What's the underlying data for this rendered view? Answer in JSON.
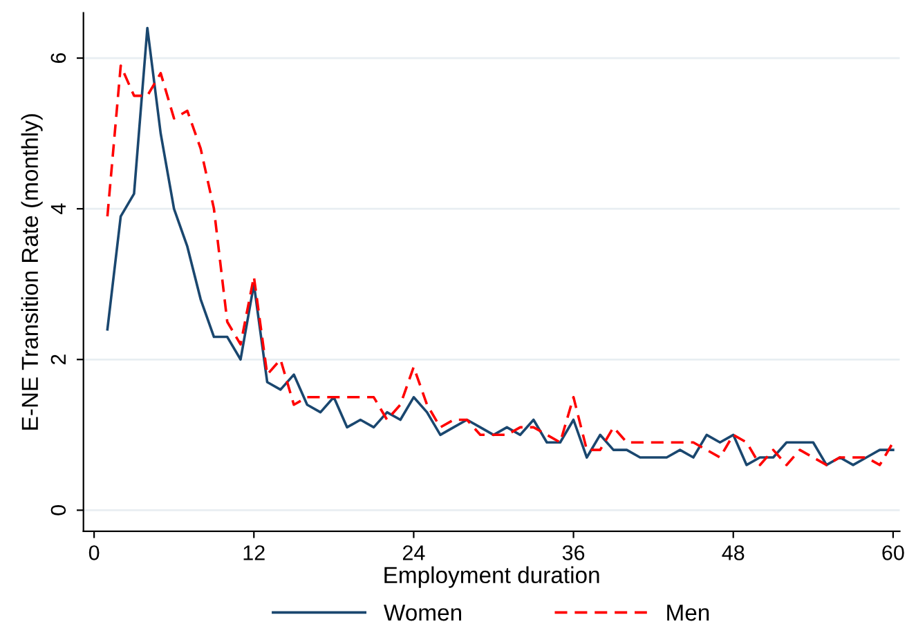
{
  "chart_data": {
    "type": "line",
    "xlabel": "Employment duration",
    "ylabel": "E-NE Transition Rate (monthly)",
    "x": [
      1,
      2,
      3,
      4,
      5,
      6,
      7,
      8,
      9,
      10,
      11,
      12,
      13,
      14,
      15,
      16,
      17,
      18,
      19,
      20,
      21,
      22,
      23,
      24,
      25,
      26,
      27,
      28,
      29,
      30,
      31,
      32,
      33,
      34,
      35,
      36,
      37,
      38,
      39,
      40,
      41,
      42,
      43,
      44,
      45,
      46,
      47,
      48,
      49,
      50,
      51,
      52,
      53,
      54,
      55,
      56,
      57,
      58,
      59,
      60
    ],
    "series": [
      {
        "name": "Women",
        "color": "#1a476f",
        "line_style": "solid",
        "values": [
          2.4,
          3.9,
          4.2,
          6.4,
          5.0,
          4.0,
          3.5,
          2.8,
          2.3,
          2.3,
          2.0,
          3.0,
          1.7,
          1.6,
          1.8,
          1.4,
          1.3,
          1.5,
          1.1,
          1.2,
          1.1,
          1.3,
          1.2,
          1.5,
          1.3,
          1.0,
          1.1,
          1.2,
          1.1,
          1.0,
          1.1,
          1.0,
          1.2,
          0.9,
          0.9,
          1.2,
          0.7,
          1.0,
          0.8,
          0.8,
          0.7,
          0.7,
          0.7,
          0.8,
          0.7,
          1.0,
          0.9,
          1.0,
          0.6,
          0.7,
          0.7,
          0.9,
          0.9,
          0.9,
          0.6,
          0.7,
          0.6,
          0.7,
          0.8,
          0.8
        ]
      },
      {
        "name": "Men",
        "color": "#ff0000",
        "line_style": "dashed",
        "values": [
          3.9,
          5.9,
          5.5,
          5.5,
          5.8,
          5.2,
          5.3,
          4.8,
          4.0,
          2.5,
          2.2,
          3.1,
          1.8,
          2.0,
          1.4,
          1.5,
          1.5,
          1.5,
          1.5,
          1.5,
          1.5,
          1.2,
          1.4,
          1.9,
          1.4,
          1.1,
          1.2,
          1.2,
          1.0,
          1.0,
          1.0,
          1.1,
          1.1,
          1.0,
          0.9,
          1.5,
          0.8,
          0.8,
          1.1,
          0.9,
          0.9,
          0.9,
          0.9,
          0.9,
          0.9,
          0.8,
          0.7,
          1.0,
          0.9,
          0.6,
          0.8,
          0.6,
          0.8,
          0.7,
          0.6,
          0.7,
          0.7,
          0.7,
          0.6,
          0.9
        ]
      }
    ],
    "xlim": [
      -0.8,
      60.5
    ],
    "ylim": [
      -0.28,
      6.6
    ],
    "xticks": [
      0,
      12,
      24,
      36,
      48,
      60
    ],
    "yticks": [
      0,
      2,
      4,
      6
    ],
    "grid": "y",
    "legend": "bottom",
    "marker": "none"
  }
}
